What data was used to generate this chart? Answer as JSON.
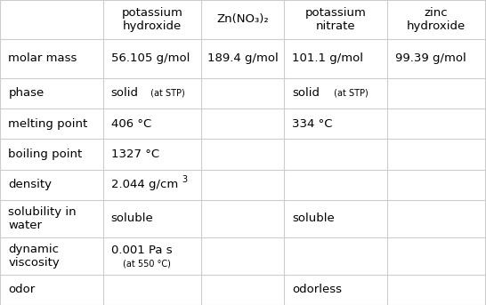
{
  "col_headers": [
    "",
    "potassium\nhydroxide",
    "Zn(NO₃)₂",
    "potassium\nnitrate",
    "zinc\nhydroxide"
  ],
  "col_header_subscript_col": 2,
  "rows": [
    {
      "label": "molar mass",
      "values": [
        "56.105 g/mol",
        "189.4 g/mol",
        "101.1 g/mol",
        "99.39 g/mol"
      ]
    },
    {
      "label": "phase",
      "values": [
        [
          "solid",
          " (at STP)"
        ],
        "",
        [
          "solid",
          " (at STP)"
        ],
        ""
      ]
    },
    {
      "label": "melting point",
      "values": [
        "406 °C",
        "",
        "334 °C",
        ""
      ]
    },
    {
      "label": "boiling point",
      "values": [
        "1327 °C",
        "",
        "",
        ""
      ]
    },
    {
      "label": "density",
      "values": [
        [
          "2.044 g/cm",
          "3"
        ],
        "",
        "",
        ""
      ]
    },
    {
      "label": "solubility in\nwater",
      "values": [
        "soluble",
        "",
        "soluble",
        ""
      ]
    },
    {
      "label": "dynamic\nviscosity",
      "values": [
        [
          "0.001 Pa s",
          "\n(at 550 °C)"
        ],
        "",
        "",
        ""
      ]
    },
    {
      "label": "odor",
      "values": [
        "",
        "",
        "odorless",
        ""
      ]
    }
  ],
  "bg_color": "#ffffff",
  "line_color": "#cccccc",
  "text_color": "#000000",
  "header_fontsize": 9.5,
  "cell_fontsize": 9.5,
  "label_fontsize": 9.5,
  "small_fontsize": 7.0,
  "figsize": [
    5.46,
    3.43
  ],
  "dpi": 100
}
